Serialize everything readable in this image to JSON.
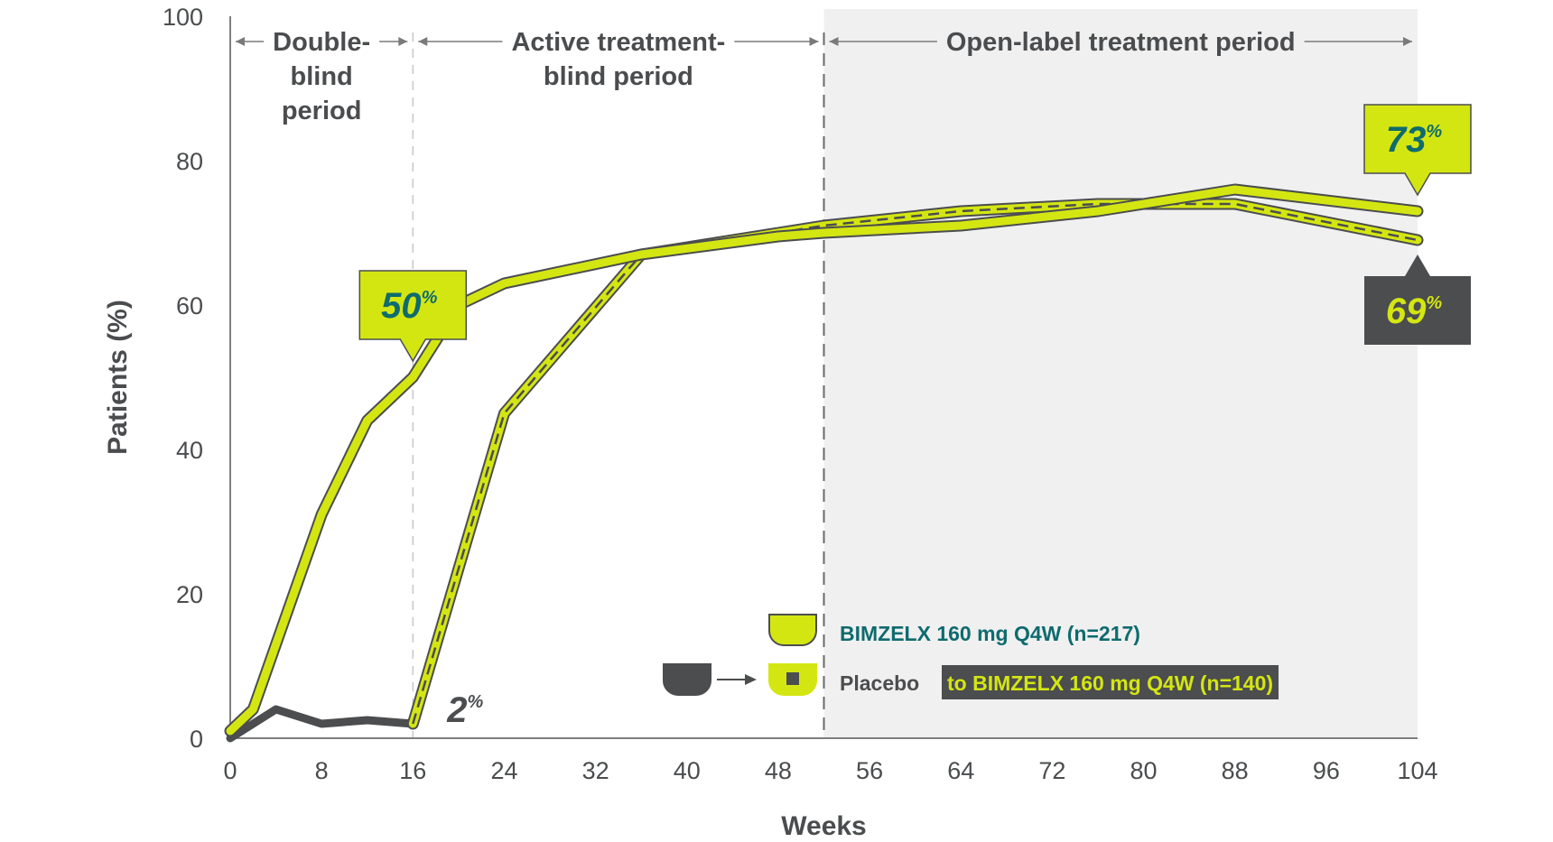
{
  "colors": {
    "lime": "#d4e612",
    "dark": "#4b4d4f",
    "teal": "#0e6b6e",
    "text": "#4a4c4e",
    "shade": "#f0f0f0"
  },
  "chart_data": {
    "type": "line",
    "xlabel": "Weeks",
    "ylabel": "Patients (%)",
    "xlim": [
      0,
      104
    ],
    "ylim": [
      0,
      100
    ],
    "x_ticks": [
      0,
      8,
      16,
      24,
      32,
      40,
      48,
      56,
      64,
      72,
      80,
      88,
      96,
      104
    ],
    "y_ticks": [
      0,
      20,
      40,
      60,
      80,
      100
    ],
    "periods": [
      {
        "label": [
          "Double-",
          "blind",
          "period"
        ],
        "x_start": 0,
        "x_end": 16,
        "shaded": false
      },
      {
        "label": [
          "Active treatment-",
          "blind period"
        ],
        "x_start": 16,
        "x_end": 52,
        "shaded": false
      },
      {
        "label": [
          "Open-label treatment period"
        ],
        "x_start": 52,
        "x_end": 104,
        "shaded": true
      }
    ],
    "series": [
      {
        "name": "BIMZELX 160 mg Q4W (n=217)",
        "x": [
          0,
          2,
          4,
          8,
          12,
          16,
          20,
          24,
          36,
          48,
          52,
          64,
          76,
          88,
          104
        ],
        "y": [
          1,
          4,
          13,
          31,
          44,
          50,
          60,
          63,
          67,
          69.5,
          70,
          71,
          73,
          76,
          73
        ]
      },
      {
        "name": "Placebo",
        "x": [
          0,
          4,
          8,
          12,
          16
        ],
        "y": [
          0,
          4,
          2,
          2.5,
          2
        ]
      },
      {
        "name": "to BIMZELX 160 mg Q4W (n=140)",
        "x": [
          16,
          24,
          36,
          48,
          52,
          64,
          76,
          88,
          104
        ],
        "y": [
          2,
          45,
          67,
          70,
          71,
          73,
          74,
          74,
          69
        ]
      }
    ],
    "annotations": [
      {
        "text": "50",
        "suffix": "%",
        "x": 16,
        "y": 50,
        "style": "lime-box"
      },
      {
        "text": "2",
        "suffix": "%",
        "x": 16,
        "y": 2,
        "style": "plain"
      },
      {
        "text": "73",
        "suffix": "%",
        "x": 104,
        "y": 73,
        "style": "lime-box"
      },
      {
        "text": "69",
        "suffix": "%",
        "x": 104,
        "y": 69,
        "style": "dark-box"
      }
    ],
    "legend": {
      "placement": "bottom-right",
      "entries": [
        {
          "text": "BIMZELX 160 mg Q4W (n=217)"
        },
        {
          "text_plain": "Placebo",
          "text_highlight": "to BIMZELX 160 mg Q4W (n=140)"
        }
      ]
    }
  }
}
